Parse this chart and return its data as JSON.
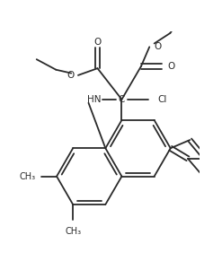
{
  "bg_color": "#ffffff",
  "line_color": "#2a2a2a",
  "line_width": 1.3,
  "font_size": 7.5,
  "fig_width": 2.47,
  "fig_height": 2.91,
  "xlim": [
    0,
    247
  ],
  "ylim": [
    0,
    291
  ]
}
